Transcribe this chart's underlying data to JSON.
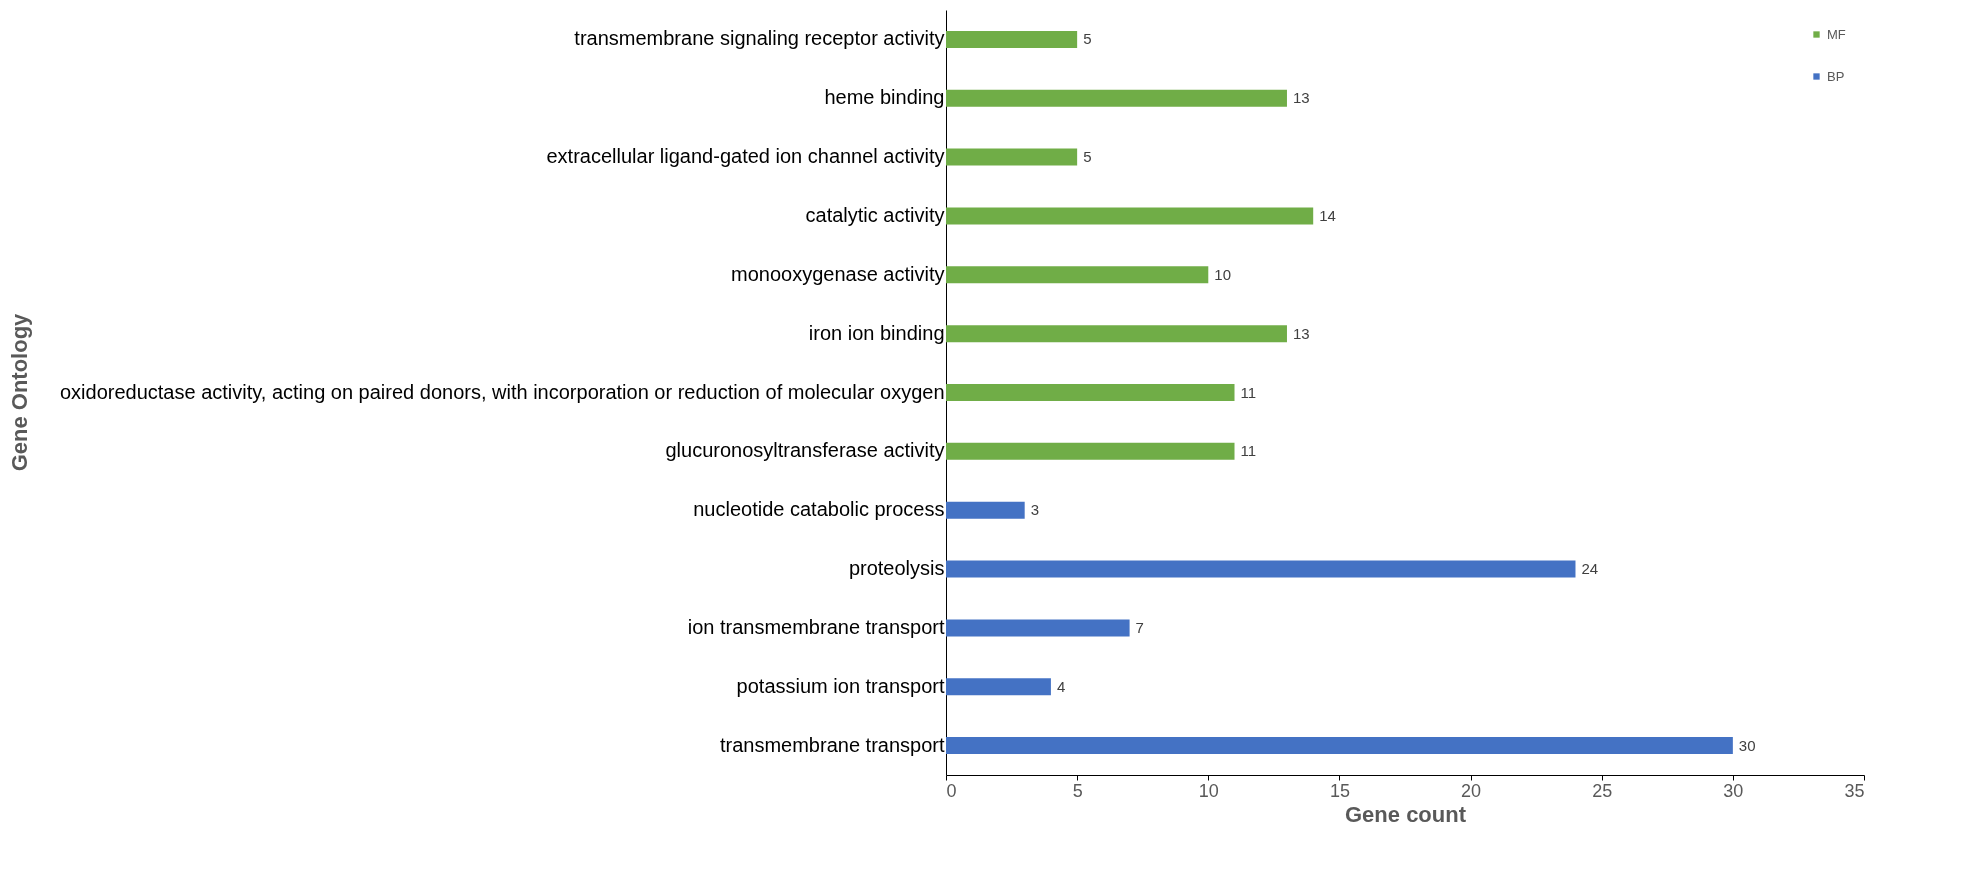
{
  "chart_data": {
    "type": "bar",
    "orientation": "horizontal",
    "xlabel": "Gene count",
    "ylabel": "Gene Ontology",
    "categories": [
      "transmembrane signaling receptor activity",
      "heme binding",
      "extracellular ligand-gated ion channel activity",
      "catalytic activity",
      "monooxygenase activity",
      "iron ion binding",
      "oxidoreductase activity, acting on paired donors, with incorporation or reduction of molecular oxygen",
      "glucuronosyltransferase activity",
      "nucleotide catabolic process",
      "proteolysis",
      "ion transmembrane transport",
      "potassium ion transport",
      "transmembrane transport"
    ],
    "series": [
      {
        "name": "MF",
        "color": "#70ad47",
        "values": [
          5,
          13,
          5,
          14,
          10,
          13,
          11,
          11,
          null,
          null,
          null,
          null,
          null
        ]
      },
      {
        "name": "BP",
        "color": "#4472c4",
        "values": [
          null,
          null,
          null,
          null,
          null,
          null,
          null,
          null,
          3,
          24,
          7,
          4,
          30
        ]
      }
    ],
    "xlim": [
      0,
      35
    ],
    "xticks": [
      0,
      5,
      10,
      15,
      20,
      25,
      30,
      35
    ],
    "data_labels": true,
    "legend": "top right"
  }
}
